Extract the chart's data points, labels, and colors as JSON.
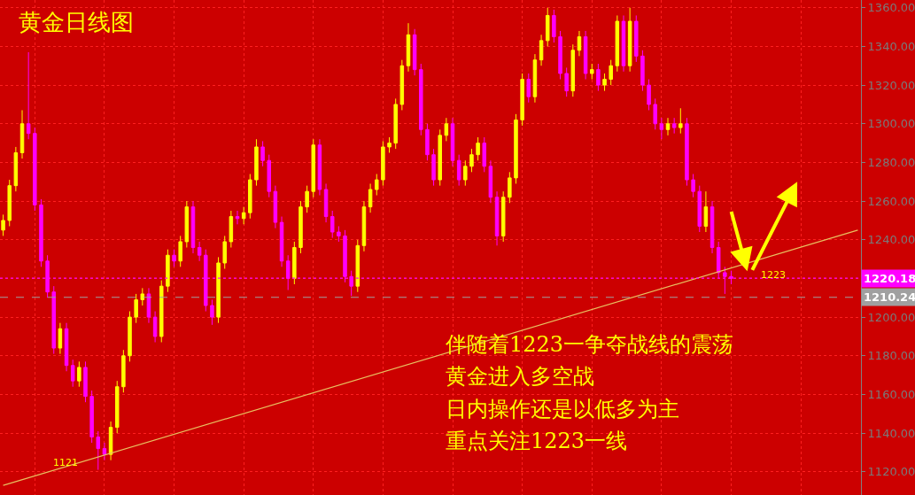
{
  "chart_data": {
    "type": "candlestick",
    "title": "黄金日线图",
    "categories": [
      null,
      null,
      null,
      null,
      null,
      null,
      null,
      null,
      null,
      null,
      null,
      null,
      null,
      null,
      null,
      null,
      null,
      null,
      null,
      null,
      null,
      null,
      null,
      null,
      null,
      null,
      null,
      null,
      null,
      null,
      null,
      null,
      null,
      null,
      null,
      null,
      null,
      null,
      null,
      null,
      null,
      null,
      null,
      null,
      null,
      null,
      null,
      null,
      null,
      null,
      null,
      null,
      null,
      null,
      null,
      null,
      null,
      null,
      null,
      null,
      null,
      null,
      null,
      null,
      null,
      null,
      null,
      null,
      null,
      null,
      null,
      null,
      null,
      null,
      null,
      null,
      null,
      null,
      null,
      null,
      null,
      null,
      null,
      null,
      null,
      null,
      null,
      null,
      null,
      null,
      null,
      null,
      null,
      null,
      null,
      null,
      null,
      null,
      null,
      null,
      null,
      null,
      null,
      null,
      null,
      null,
      null,
      null,
      null,
      null,
      null,
      null,
      null,
      null,
      null,
      null,
      null,
      null,
      null,
      null,
      null,
      null,
      null,
      null,
      null,
      null,
      null,
      null,
      null,
      null,
      null,
      null,
      null,
      null,
      null,
      null
    ],
    "colors": [
      "#ffff00",
      "#ffff00",
      "#ffff00",
      "#ffff00",
      "#ff00ff",
      "#ff00ff",
      "#ff00ff",
      "#ff00ff",
      "#ff00ff",
      "#ffff00",
      "#ff00ff",
      "#ff00ff",
      "#ffff00",
      "#ff00ff",
      "#ff00ff",
      "#ff00ff",
      "#ff00ff",
      "#ffff00",
      "#ffff00",
      "#ffff00",
      "#ffff00",
      "#ffff00",
      "#ffff00",
      "#ff00ff",
      "#ff00ff",
      "#ffff00",
      "#ffff00",
      "#ff00ff",
      "#ffff00",
      "#ffff00",
      "#ff00ff",
      "#ff00ff",
      "#ff00ff",
      "#ff00ff",
      "#ffff00",
      "#ffff00",
      "#ffff00",
      "#ff00ff",
      "#ffff00",
      "#ffff00",
      "#ffff00",
      "#ff00ff",
      "#ff00ff",
      "#ff00ff",
      "#ff00ff",
      "#ff00ff",
      "#ffff00",
      "#ffff00",
      "#ffff00",
      "#ffff00",
      "#ff00ff",
      "#ff00ff",
      "#ff00ff",
      "#ff00ff",
      "#ff00ff",
      "#ff00ff",
      "#ffff00",
      "#ffff00",
      "#ffff00",
      "#ffff00",
      "#ffff00",
      "#ffff00",
      "#ffff00",
      "#ffff00",
      "#ffff00",
      "#ff00ff",
      "#ff00ff",
      "#ff00ff",
      "#ff00ff",
      "#ffff00",
      "#ffff00",
      "#ff00ff",
      "#ff00ff",
      "#ffff00",
      "#ffff00",
      "#ffff00",
      "#ff00ff",
      "#ff00ff",
      "#ff00ff",
      "#ffff00",
      "#ffff00",
      "#ffff00",
      "#ffff00",
      "#ff00ff",
      "#ffff00",
      "#ffff00",
      "#ffff00",
      "#ff00ff",
      "#ff00ff",
      "#ff00ff",
      "#ffff00",
      "#ffff00",
      "#ff00ff",
      "#ffff00",
      "#ff00ff",
      "#ffff00",
      "#ffff00",
      "#ffff00",
      "#ff00ff",
      "#ffff00",
      "#ff00ff",
      "#ff00ff",
      "#ff00ff",
      "#ff00ff",
      "#ff00ff",
      "#ffff00",
      "#ff00ff",
      "#ffff00",
      "#ff00ff",
      "#ff00ff",
      "#ff00ff",
      "#ffff00",
      "#ff00ff",
      "#ff00ff",
      "#ff00ff",
      "#ff00ff",
      null,
      null,
      null,
      null,
      null,
      null,
      null,
      null,
      null,
      null,
      null,
      null,
      null,
      null,
      null,
      null,
      null,
      null,
      null,
      null
    ],
    "ohlc": [
      [
        1245,
        1253,
        1242,
        1250
      ],
      [
        1250,
        1271,
        1247,
        1268
      ],
      [
        1268,
        1288,
        1265,
        1285
      ],
      [
        1285,
        1307,
        1282,
        1300
      ],
      [
        1300,
        1337,
        1292,
        1295
      ],
      [
        1295,
        1298,
        1255,
        1258
      ],
      [
        1258,
        1261,
        1226,
        1229
      ],
      [
        1229,
        1232,
        1210,
        1213
      ],
      [
        1213,
        1216,
        1181,
        1184
      ],
      [
        1184,
        1197,
        1181,
        1194
      ],
      [
        1194,
        1197,
        1172,
        1175
      ],
      [
        1175,
        1178,
        1164,
        1167
      ],
      [
        1167,
        1177,
        1164,
        1174
      ],
      [
        1174,
        1177,
        1156,
        1159
      ],
      [
        1159,
        1162,
        1135,
        1138
      ],
      [
        1138,
        1141,
        1121,
        1132
      ],
      [
        1132,
        1135,
        1126,
        1129
      ],
      [
        1129,
        1146,
        1126,
        1143
      ],
      [
        1143,
        1167,
        1140,
        1164
      ],
      [
        1164,
        1183,
        1161,
        1180
      ],
      [
        1180,
        1203,
        1177,
        1200
      ],
      [
        1200,
        1212,
        1197,
        1209
      ],
      [
        1209,
        1215,
        1206,
        1212
      ],
      [
        1212,
        1215,
        1197,
        1200
      ],
      [
        1200,
        1203,
        1187,
        1190
      ],
      [
        1190,
        1219,
        1187,
        1216
      ],
      [
        1216,
        1235,
        1213,
        1232
      ],
      [
        1232,
        1235,
        1226,
        1229
      ],
      [
        1229,
        1242,
        1226,
        1239
      ],
      [
        1239,
        1260,
        1236,
        1257
      ],
      [
        1257,
        1260,
        1233,
        1236
      ],
      [
        1236,
        1239,
        1229,
        1232
      ],
      [
        1232,
        1235,
        1203,
        1206
      ],
      [
        1206,
        1209,
        1196,
        1200
      ],
      [
        1200,
        1231,
        1197,
        1228
      ],
      [
        1228,
        1242,
        1225,
        1239
      ],
      [
        1239,
        1255,
        1236,
        1252
      ],
      [
        1252,
        1255,
        1248,
        1251
      ],
      [
        1251,
        1257,
        1248,
        1254
      ],
      [
        1254,
        1274,
        1251,
        1271
      ],
      [
        1271,
        1292,
        1268,
        1288
      ],
      [
        1288,
        1291,
        1278,
        1281
      ],
      [
        1281,
        1284,
        1262,
        1265
      ],
      [
        1265,
        1268,
        1246,
        1249
      ],
      [
        1249,
        1252,
        1226,
        1229
      ],
      [
        1229,
        1232,
        1214,
        1220
      ],
      [
        1220,
        1239,
        1217,
        1236
      ],
      [
        1236,
        1260,
        1233,
        1257
      ],
      [
        1257,
        1268,
        1254,
        1265
      ],
      [
        1265,
        1292,
        1262,
        1289
      ],
      [
        1289,
        1292,
        1263,
        1266
      ],
      [
        1266,
        1269,
        1249,
        1252
      ],
      [
        1252,
        1255,
        1241,
        1244
      ],
      [
        1244,
        1247,
        1239,
        1242
      ],
      [
        1242,
        1245,
        1218,
        1221
      ],
      [
        1221,
        1224,
        1211,
        1216
      ],
      [
        1216,
        1240,
        1213,
        1237
      ],
      [
        1237,
        1260,
        1234,
        1257
      ],
      [
        1257,
        1269,
        1254,
        1266
      ],
      [
        1266,
        1274,
        1263,
        1271
      ],
      [
        1271,
        1291,
        1268,
        1288
      ],
      [
        1288,
        1293,
        1285,
        1290
      ],
      [
        1290,
        1313,
        1287,
        1310
      ],
      [
        1310,
        1333,
        1307,
        1330
      ],
      [
        1330,
        1352,
        1327,
        1346
      ],
      [
        1346,
        1349,
        1325,
        1328
      ],
      [
        1328,
        1331,
        1294,
        1297
      ],
      [
        1297,
        1300,
        1281,
        1284
      ],
      [
        1284,
        1287,
        1268,
        1271
      ],
      [
        1271,
        1297,
        1268,
        1294
      ],
      [
        1294,
        1303,
        1291,
        1300
      ],
      [
        1300,
        1303,
        1278,
        1281
      ],
      [
        1281,
        1284,
        1268,
        1271
      ],
      [
        1271,
        1281,
        1268,
        1278
      ],
      [
        1278,
        1287,
        1275,
        1284
      ],
      [
        1284,
        1293,
        1281,
        1290
      ],
      [
        1290,
        1293,
        1275,
        1278
      ],
      [
        1278,
        1281,
        1259,
        1262
      ],
      [
        1262,
        1265,
        1237,
        1242
      ],
      [
        1242,
        1265,
        1239,
        1262
      ],
      [
        1262,
        1275,
        1259,
        1272
      ],
      [
        1272,
        1305,
        1269,
        1302
      ],
      [
        1302,
        1326,
        1299,
        1323
      ],
      [
        1323,
        1326,
        1311,
        1314
      ],
      [
        1314,
        1336,
        1311,
        1333
      ],
      [
        1333,
        1346,
        1330,
        1343
      ],
      [
        1343,
        1360,
        1340,
        1356
      ],
      [
        1356,
        1359,
        1342,
        1345
      ],
      [
        1345,
        1348,
        1323,
        1326
      ],
      [
        1326,
        1329,
        1314,
        1317
      ],
      [
        1317,
        1341,
        1314,
        1338
      ],
      [
        1338,
        1348,
        1335,
        1345
      ],
      [
        1345,
        1348,
        1323,
        1326
      ],
      [
        1326,
        1331,
        1323,
        1328
      ],
      [
        1328,
        1331,
        1317,
        1320
      ],
      [
        1320,
        1326,
        1317,
        1323
      ],
      [
        1323,
        1333,
        1320,
        1330
      ],
      [
        1330,
        1356,
        1327,
        1353
      ],
      [
        1353,
        1356,
        1327,
        1330
      ],
      [
        1330,
        1360,
        1327,
        1353
      ],
      [
        1353,
        1356,
        1332,
        1335
      ],
      [
        1335,
        1338,
        1317,
        1320
      ],
      [
        1320,
        1323,
        1307,
        1310
      ],
      [
        1310,
        1313,
        1297,
        1300
      ],
      [
        1300,
        1303,
        1292,
        1297
      ],
      [
        1297,
        1303,
        1294,
        1300
      ],
      [
        1300,
        1303,
        1295,
        1298
      ],
      [
        1298,
        1308,
        1295,
        1300
      ],
      [
        1300,
        1303,
        1268,
        1271
      ],
      [
        1271,
        1274,
        1262,
        1265
      ],
      [
        1265,
        1268,
        1244,
        1247
      ],
      [
        1247,
        1265,
        1244,
        1257
      ],
      [
        1257,
        1260,
        1233,
        1236
      ],
      [
        1236,
        1239,
        1220,
        1223
      ],
      [
        1223,
        1226,
        1212,
        1221
      ],
      [
        1221,
        1224,
        1217,
        1220
      ],
      null,
      null,
      null,
      null,
      null,
      null,
      null,
      null,
      null,
      null,
      null,
      null,
      null,
      null,
      null,
      null,
      null,
      null,
      null,
      null
    ],
    "series": [
      {
        "type": "line",
        "color": "#e8c060",
        "values": [
          1113,
          null,
          null,
          null,
          null,
          null,
          null,
          null,
          null,
          null,
          null,
          null,
          null,
          null,
          null,
          null,
          null,
          null,
          null,
          null,
          null,
          null,
          null,
          null,
          null,
          null,
          null,
          null,
          null,
          null,
          null,
          null,
          null,
          null,
          null,
          null,
          null,
          null,
          null,
          null,
          null,
          null,
          null,
          null,
          null,
          null,
          null,
          null,
          null,
          null,
          null,
          null,
          null,
          null,
          null,
          null,
          null,
          null,
          null,
          null,
          null,
          null,
          null,
          null,
          null,
          null,
          null,
          null,
          null,
          null,
          null,
          null,
          null,
          null,
          null,
          null,
          null,
          null,
          null,
          null,
          null,
          null,
          null,
          null,
          null,
          null,
          null,
          null,
          null,
          null,
          null,
          null,
          null,
          null,
          null,
          null,
          null,
          null,
          null,
          null,
          null,
          null,
          null,
          null,
          null,
          null,
          null,
          null,
          null,
          null,
          null,
          null,
          null,
          null,
          null,
          null,
          null,
          null,
          null,
          null,
          null,
          null,
          null,
          null,
          null,
          null,
          null,
          null,
          null,
          null,
          null,
          null,
          null,
          null,
          null,
          1245
        ]
      }
    ],
    "ylim": [
      1108,
      1364
    ],
    "yticks": [
      {
        "value": 1120,
        "label": "1120.00"
      },
      {
        "value": 1140,
        "label": "1140.00"
      },
      {
        "value": 1160,
        "label": "1160.00"
      },
      {
        "value": 1180,
        "label": "1180.00"
      },
      {
        "value": 1200,
        "label": "1200.00"
      },
      {
        "value": 1220,
        "label": null
      },
      {
        "value": 1240,
        "label": "1240.00"
      },
      {
        "value": 1260,
        "label": "1260.00"
      },
      {
        "value": 1280,
        "label": "1280.00"
      },
      {
        "value": 1300,
        "label": "1300.00"
      },
      {
        "value": 1320,
        "label": "1320.00"
      },
      {
        "value": 1340,
        "label": "1340.00"
      },
      {
        "value": 1360,
        "label": "1360.00"
      }
    ],
    "ref_lines": [
      {
        "axis": "y",
        "value": 1220.18,
        "label": "1220.18",
        "color": "#ff00ff",
        "line_style": "dotted"
      },
      {
        "axis": "y",
        "value": 1210.24,
        "label": "1210.24",
        "color": "#a0a0a0",
        "line_style": "dashed"
      }
    ],
    "annotations": [
      "1121",
      "1223",
      "伴随着1223一争夺战线的震荡",
      "黄金进入多空战",
      "日内操作还是以低多为主",
      "重点关注1223一线"
    ],
    "grid": true,
    "tick_labels": "y"
  }
}
